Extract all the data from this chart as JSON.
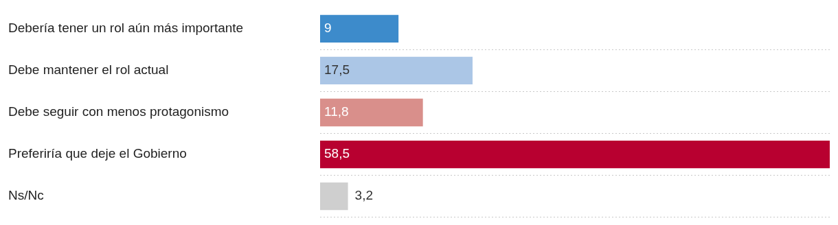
{
  "chart_data": {
    "type": "bar",
    "orientation": "horizontal",
    "categories": [
      "Debería tener un rol aún más importante",
      "Debe mantener el rol actual",
      "Debe seguir con menos protagonismo",
      "Preferiría que deje el Gobierno",
      "Ns/Nc"
    ],
    "values": [
      9,
      17.5,
      11.8,
      58.5,
      3.2
    ],
    "colors": [
      "#3d8bcb",
      "#abc6e6",
      "#d98f8b",
      "#b80030",
      "#cfcfcf"
    ],
    "value_labels": [
      "9",
      "17,5",
      "11,8",
      "58,5",
      "3,2"
    ],
    "grid": "y",
    "legend": false
  }
}
